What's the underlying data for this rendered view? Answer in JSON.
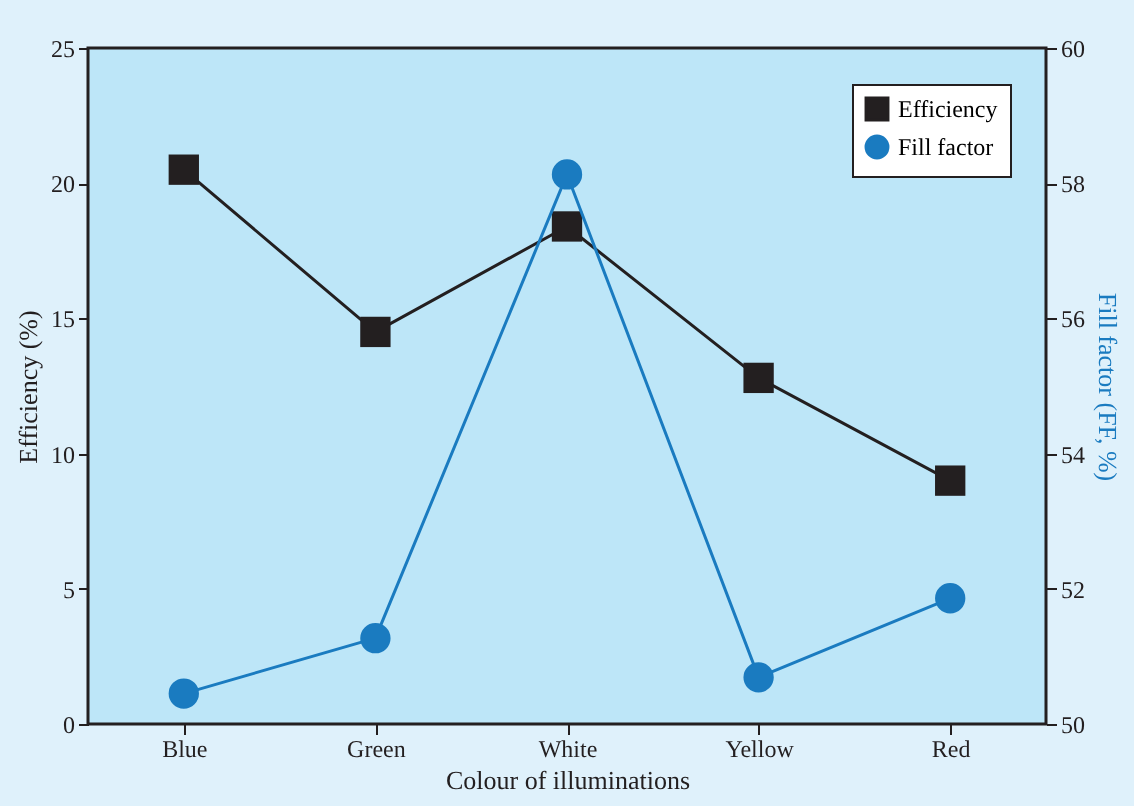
{
  "chart_data": {
    "type": "line",
    "xlabel": "Colour of illuminations",
    "ylabel": "Efficiency (%)",
    "y2label": "Fill factor (FF, %)",
    "categories": [
      "Blue",
      "Green",
      "White",
      "Yellow",
      "Red"
    ],
    "series": [
      {
        "name": "Efficiency",
        "color": "#231f20",
        "marker": "square",
        "values": [
          20.5,
          14.5,
          18.4,
          12.8,
          9.0
        ]
      },
      {
        "name": "Fill factor",
        "color": "#1a7bc0",
        "marker": "circle",
        "axis": "y2",
        "values": [
          50.45,
          51.27,
          58.13,
          50.69,
          51.86
        ]
      }
    ],
    "ylim": [
      0,
      25
    ],
    "yticks": [
      0,
      5,
      10,
      15,
      20,
      25
    ],
    "y2lim": [
      50,
      60
    ],
    "y2ticks": [
      50,
      52,
      54,
      56,
      58,
      60
    ],
    "grid": false,
    "legend": "top right",
    "line_style": "solid"
  }
}
